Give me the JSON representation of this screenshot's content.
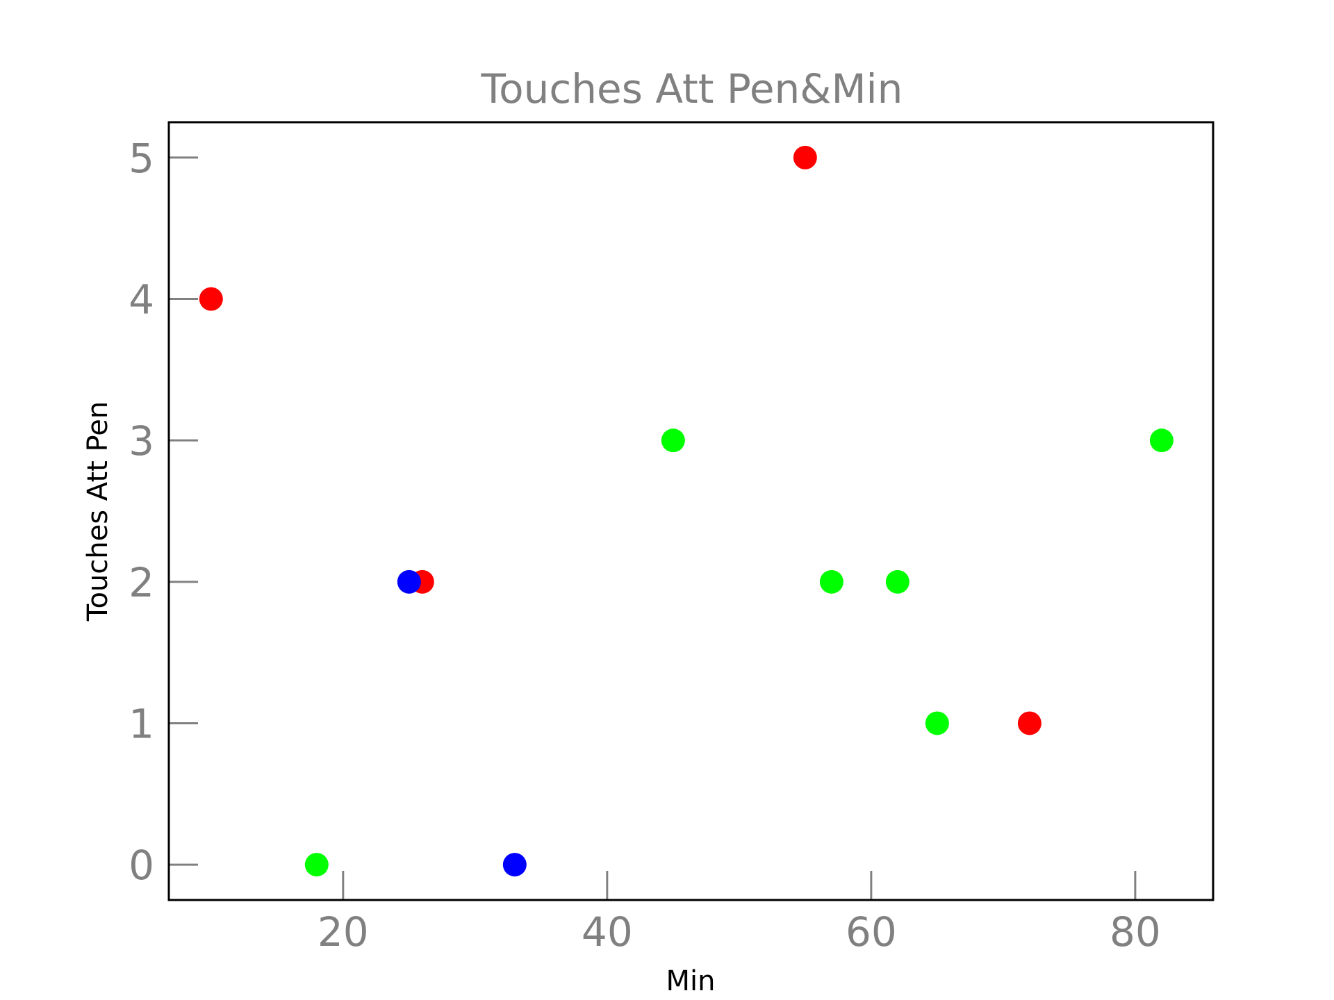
{
  "chart_data": {
    "type": "scatter",
    "title": "Touches Att Pen&Min",
    "xlabel": "Min",
    "ylabel": "Touches Att Pen",
    "xlim": [
      6.8,
      85.9
    ],
    "ylim": [
      -0.25,
      5.25
    ],
    "xticks": [
      20,
      40,
      60,
      80
    ],
    "yticks": [
      0,
      1,
      2,
      3,
      4,
      5
    ],
    "grid": false,
    "legend": "none",
    "points": [
      {
        "x": 10,
        "y": 4,
        "color": "#ff0000"
      },
      {
        "x": 18,
        "y": 0,
        "color": "#00ff00"
      },
      {
        "x": 26,
        "y": 2,
        "color": "#ff0000"
      },
      {
        "x": 25,
        "y": 2,
        "color": "#0000ff"
      },
      {
        "x": 33,
        "y": 0,
        "color": "#0000ff"
      },
      {
        "x": 45,
        "y": 3,
        "color": "#00ff00"
      },
      {
        "x": 55,
        "y": 5,
        "color": "#ff0000"
      },
      {
        "x": 57,
        "y": 2,
        "color": "#00ff00"
      },
      {
        "x": 62,
        "y": 2,
        "color": "#00ff00"
      },
      {
        "x": 65,
        "y": 1,
        "color": "#00ff00"
      },
      {
        "x": 72,
        "y": 1,
        "color": "#ff0000"
      },
      {
        "x": 82,
        "y": 3,
        "color": "#00ff00"
      }
    ]
  }
}
